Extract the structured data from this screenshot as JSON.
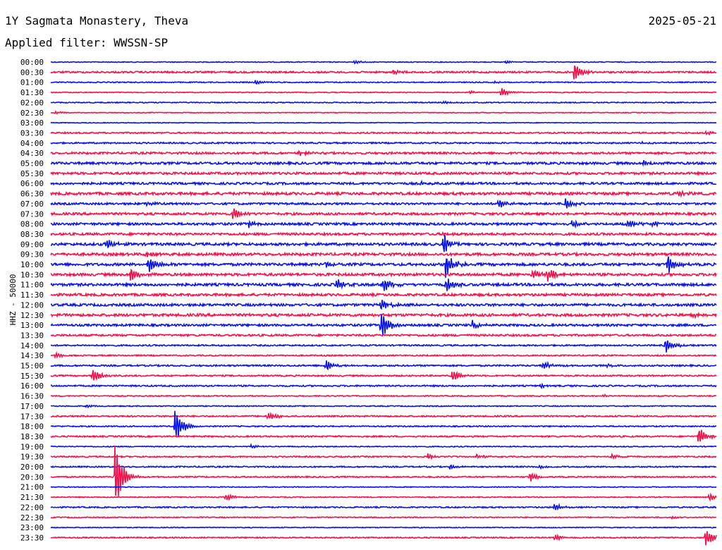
{
  "header": {
    "title": "1Y Sagmata Monastery, Theva",
    "date": "2025-05-21",
    "filter": "Applied filter: WWSSN-SP"
  },
  "axis": {
    "channel_label": "HHZ - 50000"
  },
  "colors": {
    "even_hour_trace": "#0b16e6",
    "half_hour_trace": "#f5124a",
    "background": "#ffffff"
  },
  "chart_data": {
    "type": "line",
    "title": "1Y Sagmata Monastery, Theva",
    "subtitle": "Applied filter: WWSSN-SP",
    "ylabel": "HHZ - 50000",
    "xlabel": "",
    "grid": false,
    "legend": "none",
    "x_range_minutes": [
      0,
      30
    ],
    "rows": [
      {
        "time": "00:00",
        "color": "#0b16e6",
        "noise": 0.6,
        "events": [
          {
            "min": 13.7,
            "amp": 3
          },
          {
            "min": 20.5,
            "amp": 2
          }
        ]
      },
      {
        "time": "00:30",
        "color": "#f5124a",
        "noise": 1.2,
        "events": [
          {
            "min": 15.4,
            "amp": 4
          },
          {
            "min": 23.6,
            "amp": 16
          }
        ]
      },
      {
        "time": "01:00",
        "color": "#0b16e6",
        "noise": 0.7,
        "events": [
          {
            "min": 9.2,
            "amp": 4
          },
          {
            "min": 20.0,
            "amp": 2
          }
        ]
      },
      {
        "time": "01:30",
        "color": "#f5124a",
        "noise": 0.6,
        "events": [
          {
            "min": 18.9,
            "amp": 2
          },
          {
            "min": 20.3,
            "amp": 8
          }
        ]
      },
      {
        "time": "02:00",
        "color": "#0b16e6",
        "noise": 0.7,
        "events": [
          {
            "min": 17.7,
            "amp": 2
          }
        ]
      },
      {
        "time": "02:30",
        "color": "#f5124a",
        "noise": 0.5,
        "events": [
          {
            "min": 0.2,
            "amp": 2
          }
        ]
      },
      {
        "time": "03:00",
        "color": "#0b16e6",
        "noise": 0.5,
        "events": []
      },
      {
        "time": "03:30",
        "color": "#f5124a",
        "noise": 1.0,
        "events": [
          {
            "min": 17.0,
            "amp": 2
          },
          {
            "min": 29.5,
            "amp": 3
          }
        ]
      },
      {
        "time": "04:00",
        "color": "#0b16e6",
        "noise": 1.0,
        "events": [
          {
            "min": 26.6,
            "amp": 2
          }
        ]
      },
      {
        "time": "04:30",
        "color": "#f5124a",
        "noise": 1.4,
        "events": [
          {
            "min": 11.2,
            "amp": 4
          }
        ]
      },
      {
        "time": "05:00",
        "color": "#0b16e6",
        "noise": 1.6,
        "events": [
          {
            "min": 15.0,
            "amp": 3
          },
          {
            "min": 26.7,
            "amp": 4
          }
        ]
      },
      {
        "time": "05:30",
        "color": "#f5124a",
        "noise": 1.6,
        "events": []
      },
      {
        "time": "06:00",
        "color": "#0b16e6",
        "noise": 1.5,
        "events": [
          {
            "min": 16.7,
            "amp": 3
          }
        ]
      },
      {
        "time": "06:30",
        "color": "#f5124a",
        "noise": 1.8,
        "events": [
          {
            "min": 28.3,
            "amp": 5
          }
        ]
      },
      {
        "time": "07:00",
        "color": "#0b16e6",
        "noise": 1.4,
        "events": [
          {
            "min": 4.3,
            "amp": 4
          },
          {
            "min": 20.2,
            "amp": 8
          },
          {
            "min": 23.2,
            "amp": 9
          }
        ]
      },
      {
        "time": "07:30",
        "color": "#f5124a",
        "noise": 1.6,
        "events": [
          {
            "min": 8.2,
            "amp": 10
          }
        ]
      },
      {
        "time": "08:00",
        "color": "#0b16e6",
        "noise": 1.6,
        "events": [
          {
            "min": 8.9,
            "amp": 5
          },
          {
            "min": 23.5,
            "amp": 6
          },
          {
            "min": 26.0,
            "amp": 8
          },
          {
            "min": 27.1,
            "amp": 5
          }
        ]
      },
      {
        "time": "08:30",
        "color": "#f5124a",
        "noise": 1.6,
        "events": [
          {
            "min": 17.7,
            "amp": 4
          }
        ]
      },
      {
        "time": "09:00",
        "color": "#0b16e6",
        "noise": 1.8,
        "events": [
          {
            "min": 2.5,
            "amp": 8
          },
          {
            "min": 17.7,
            "amp": 16
          }
        ]
      },
      {
        "time": "09:30",
        "color": "#f5124a",
        "noise": 1.8,
        "events": [
          {
            "min": 4.3,
            "amp": 4
          }
        ]
      },
      {
        "time": "10:00",
        "color": "#0b16e6",
        "noise": 1.8,
        "events": [
          {
            "min": 4.4,
            "amp": 14
          },
          {
            "min": 12.4,
            "amp": 6
          },
          {
            "min": 17.8,
            "amp": 20
          },
          {
            "min": 27.8,
            "amp": 16
          }
        ]
      },
      {
        "time": "10:30",
        "color": "#f5124a",
        "noise": 1.8,
        "events": [
          {
            "min": 3.6,
            "amp": 12
          },
          {
            "min": 21.7,
            "amp": 10
          },
          {
            "min": 22.4,
            "amp": 10
          }
        ]
      },
      {
        "time": "11:00",
        "color": "#0b16e6",
        "noise": 1.8,
        "events": [
          {
            "min": 12.9,
            "amp": 10
          },
          {
            "min": 15.0,
            "amp": 12
          },
          {
            "min": 17.8,
            "amp": 12
          }
        ]
      },
      {
        "time": "11:30",
        "color": "#f5124a",
        "noise": 1.7,
        "events": []
      },
      {
        "time": "12:00",
        "color": "#0b16e6",
        "noise": 1.7,
        "events": [
          {
            "min": 14.9,
            "amp": 10
          }
        ]
      },
      {
        "time": "12:30",
        "color": "#f5124a",
        "noise": 1.8,
        "events": [
          {
            "min": 29.0,
            "amp": 4
          }
        ]
      },
      {
        "time": "13:00",
        "color": "#0b16e6",
        "noise": 1.5,
        "events": [
          {
            "min": 14.9,
            "amp": 24
          },
          {
            "min": 19.0,
            "amp": 6
          }
        ]
      },
      {
        "time": "13:30",
        "color": "#f5124a",
        "noise": 1.3,
        "events": []
      },
      {
        "time": "14:00",
        "color": "#0b16e6",
        "noise": 1.0,
        "events": [
          {
            "min": 27.7,
            "amp": 12
          }
        ]
      },
      {
        "time": "14:30",
        "color": "#f5124a",
        "noise": 0.9,
        "events": [
          {
            "min": 0.2,
            "amp": 4
          }
        ]
      },
      {
        "time": "15:00",
        "color": "#0b16e6",
        "noise": 1.1,
        "events": [
          {
            "min": 12.4,
            "amp": 10
          },
          {
            "min": 22.2,
            "amp": 6
          },
          {
            "min": 25.0,
            "amp": 3
          }
        ]
      },
      {
        "time": "15:30",
        "color": "#f5124a",
        "noise": 1.0,
        "events": [
          {
            "min": 1.9,
            "amp": 12
          },
          {
            "min": 18.1,
            "amp": 10
          }
        ]
      },
      {
        "time": "16:00",
        "color": "#0b16e6",
        "noise": 1.0,
        "events": [
          {
            "min": 22.1,
            "amp": 3
          }
        ]
      },
      {
        "time": "16:30",
        "color": "#f5124a",
        "noise": 0.7,
        "events": [
          {
            "min": 24.9,
            "amp": 2
          }
        ]
      },
      {
        "time": "17:00",
        "color": "#0b16e6",
        "noise": 0.7,
        "events": [
          {
            "min": 1.6,
            "amp": 2
          }
        ]
      },
      {
        "time": "17:30",
        "color": "#f5124a",
        "noise": 1.0,
        "events": [
          {
            "min": 9.8,
            "amp": 8
          }
        ]
      },
      {
        "time": "18:00",
        "color": "#0b16e6",
        "noise": 0.8,
        "events": [
          {
            "min": 5.6,
            "amp": 28
          }
        ]
      },
      {
        "time": "18:30",
        "color": "#f5124a",
        "noise": 1.0,
        "events": [
          {
            "min": 29.2,
            "amp": 16
          }
        ]
      },
      {
        "time": "19:00",
        "color": "#0b16e6",
        "noise": 0.7,
        "events": [
          {
            "min": 9.0,
            "amp": 3
          }
        ]
      },
      {
        "time": "19:30",
        "color": "#f5124a",
        "noise": 0.9,
        "events": [
          {
            "min": 17.0,
            "amp": 4
          },
          {
            "min": 19.2,
            "amp": 4
          },
          {
            "min": 25.3,
            "amp": 3
          }
        ]
      },
      {
        "time": "20:00",
        "color": "#0b16e6",
        "noise": 0.9,
        "events": [
          {
            "min": 18.0,
            "amp": 4
          },
          {
            "min": 22.0,
            "amp": 3
          }
        ]
      },
      {
        "time": "20:30",
        "color": "#f5124a",
        "noise": 0.9,
        "events": [
          {
            "min": 2.9,
            "amp": 60
          },
          {
            "min": 21.6,
            "amp": 8
          }
        ]
      },
      {
        "time": "21:00",
        "color": "#0b16e6",
        "noise": 0.6,
        "events": []
      },
      {
        "time": "21:30",
        "color": "#f5124a",
        "noise": 0.7,
        "events": [
          {
            "min": 7.9,
            "amp": 6
          },
          {
            "min": 29.7,
            "amp": 6
          }
        ]
      },
      {
        "time": "22:00",
        "color": "#0b16e6",
        "noise": 0.9,
        "events": [
          {
            "min": 22.7,
            "amp": 6
          }
        ]
      },
      {
        "time": "22:30",
        "color": "#f5124a",
        "noise": 0.7,
        "events": [
          {
            "min": 28.0,
            "amp": 2
          }
        ]
      },
      {
        "time": "23:00",
        "color": "#0b16e6",
        "noise": 0.6,
        "events": []
      },
      {
        "time": "23:30",
        "color": "#f5124a",
        "noise": 0.8,
        "events": [
          {
            "min": 22.7,
            "amp": 5
          },
          {
            "min": 29.5,
            "amp": 18
          }
        ]
      }
    ]
  }
}
